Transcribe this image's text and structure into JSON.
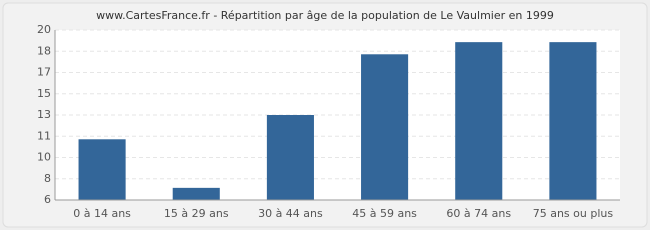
{
  "chart_data": {
    "type": "bar",
    "title": "www.CartesFrance.fr - Répartition par âge de la population de Le Vaulmier en 1999",
    "categories": [
      "0 à 14 ans",
      "15 à 29 ans",
      "30 à 44 ans",
      "45 à 59 ans",
      "60 à 74 ans",
      "75 ans ou plus"
    ],
    "values": [
      11,
      7,
      13,
      18,
      19,
      19
    ],
    "color": "#336699",
    "ylim": [
      6,
      20
    ],
    "yticks": [
      6,
      {
        "value": 7.75,
        "label": "8"
      },
      {
        "value": 9.5,
        "label": "10"
      },
      {
        "value": 11.25,
        "label": "11"
      },
      13,
      {
        "value": 14.75,
        "label": "15"
      },
      {
        "value": 16.5,
        "label": "17"
      },
      {
        "value": 18.25,
        "label": "18"
      },
      20
    ],
    "grid": true
  }
}
